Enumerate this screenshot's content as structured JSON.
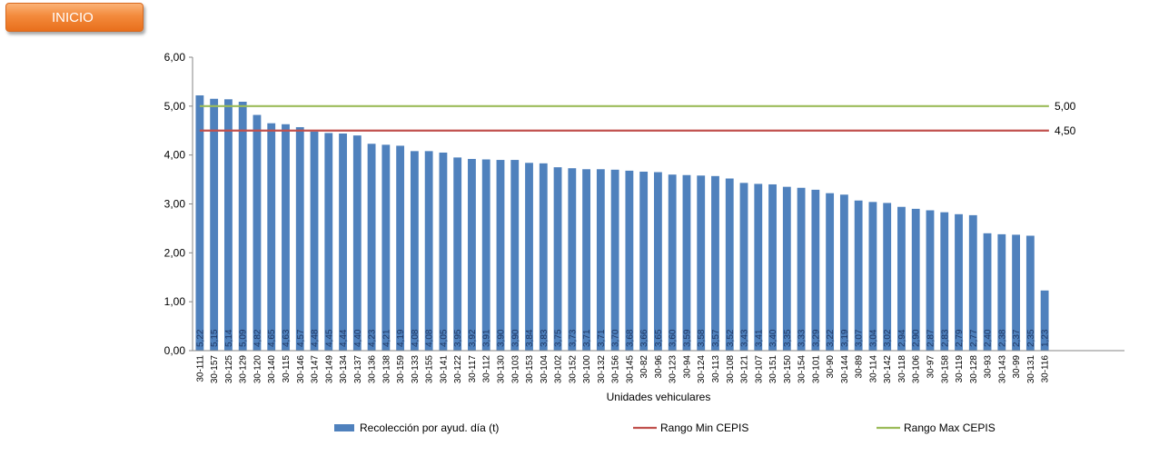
{
  "nav": {
    "inicio_label": "INICIO"
  },
  "colors": {
    "bar": "#4f81bd",
    "min_line": "#c0504d",
    "max_line": "#9bbb59",
    "axis": "#868686",
    "button": "#f38a3c"
  },
  "chart_data": {
    "type": "bar",
    "xlabel": "Unidades vehiculares",
    "ylabel": "",
    "ylim": [
      0,
      6
    ],
    "yticks": [
      "0,00",
      "1,00",
      "2,00",
      "3,00",
      "4,00",
      "5,00",
      "6,00"
    ],
    "grid": false,
    "legend_position": "bottom",
    "categories": [
      "30-111",
      "30-157",
      "30-125",
      "30-129",
      "30-120",
      "30-140",
      "30-115",
      "30-146",
      "30-147",
      "30-149",
      "30-134",
      "30-137",
      "30-136",
      "30-138",
      "30-159",
      "30-133",
      "30-155",
      "30-141",
      "30-122",
      "30-117",
      "30-112",
      "30-130",
      "30-103",
      "30-153",
      "30-104",
      "30-102",
      "30-152",
      "30-100",
      "30-132",
      "30-156",
      "30-145",
      "30-82",
      "30-96",
      "30-123",
      "30-94",
      "30-124",
      "30-113",
      "30-108",
      "30-121",
      "30-107",
      "30-151",
      "30-150",
      "30-154",
      "30-101",
      "30-90",
      "30-144",
      "30-89",
      "30-114",
      "30-142",
      "30-118",
      "30-106",
      "30-97",
      "30-158",
      "30-119",
      "30-128",
      "30-93",
      "30-143",
      "30-99",
      "30-131",
      "30-116"
    ],
    "series": [
      {
        "name": "Recolección por ayud. día (t)",
        "type": "bar",
        "values": [
          5.22,
          5.15,
          5.14,
          5.09,
          4.82,
          4.65,
          4.63,
          4.57,
          4.48,
          4.45,
          4.44,
          4.4,
          4.23,
          4.21,
          4.19,
          4.08,
          4.08,
          4.05,
          3.95,
          3.92,
          3.91,
          3.9,
          3.9,
          3.84,
          3.83,
          3.75,
          3.73,
          3.71,
          3.71,
          3.7,
          3.68,
          3.66,
          3.65,
          3.6,
          3.59,
          3.58,
          3.57,
          3.52,
          3.43,
          3.41,
          3.4,
          3.35,
          3.33,
          3.29,
          3.22,
          3.19,
          3.07,
          3.04,
          3.02,
          2.94,
          2.9,
          2.87,
          2.83,
          2.79,
          2.77,
          2.4,
          2.38,
          2.37,
          2.35,
          1.23
        ],
        "labels": [
          "5,22",
          "5,15",
          "5,14",
          "5,09",
          "4,82",
          "4,65",
          "4,63",
          "4,57",
          "4,48",
          "4,45",
          "4,44",
          "4,40",
          "4,23",
          "4,21",
          "4,19",
          "4,08",
          "4,08",
          "4,05",
          "3,95",
          "3,92",
          "3,91",
          "3,90",
          "3,90",
          "3,84",
          "3,83",
          "3,75",
          "3,73",
          "3,71",
          "3,71",
          "3,70",
          "3,68",
          "3,66",
          "3,65",
          "3,60",
          "3,59",
          "3,58",
          "3,57",
          "3,52",
          "3,43",
          "3,41",
          "3,40",
          "3,35",
          "3,33",
          "3,29",
          "3,22",
          "3,19",
          "3,07",
          "3,04",
          "3,02",
          "2,94",
          "2,90",
          "2,87",
          "2,83",
          "2,79",
          "2,77",
          "2,40",
          "2,38",
          "2,37",
          "2,35",
          "1,23"
        ]
      },
      {
        "name": "Rango Min CEPIS",
        "type": "line",
        "value": 4.5,
        "label": "4,50"
      },
      {
        "name": "Rango Max CEPIS",
        "type": "line",
        "value": 5.0,
        "label": "5,00"
      }
    ]
  }
}
